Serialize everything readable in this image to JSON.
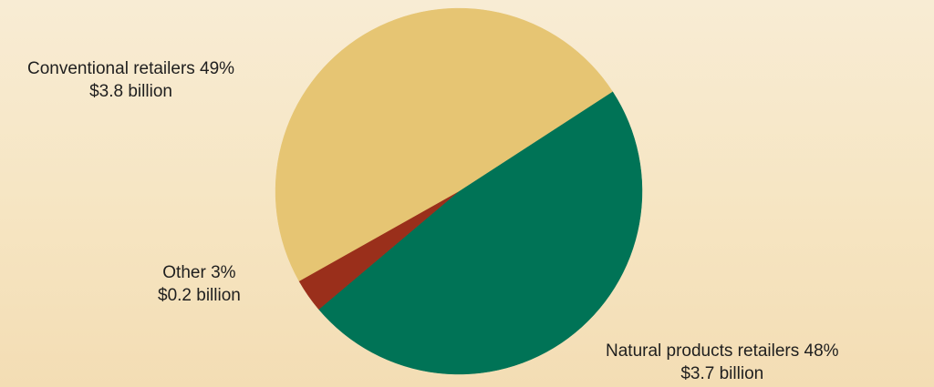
{
  "chart_data": {
    "type": "pie",
    "title": "",
    "slices": [
      {
        "label": "Natural products retailers",
        "percent_text": "48%",
        "value_text": "$3.7 billion",
        "percent": 48,
        "value": 3.7,
        "color": "#007356"
      },
      {
        "label": "Other",
        "percent_text": "3%",
        "value_text": "$0.2 billion",
        "percent": 3,
        "value": 0.2,
        "color": "#9a2f1b"
      },
      {
        "label": "Conventional retailers",
        "percent_text": "49%",
        "value_text": "$3.8 billion",
        "percent": 49,
        "value": 3.8,
        "color": "#e6c573"
      }
    ]
  },
  "labels": {
    "conventional": {
      "line1": "Conventional retailers 49%",
      "line2": "$3.8 billion"
    },
    "other": {
      "line1": "Other  3%",
      "line2": "$0.2 billion"
    },
    "natural": {
      "line1": "Natural products retailers 48%",
      "line2": "$3.7 billion"
    }
  }
}
